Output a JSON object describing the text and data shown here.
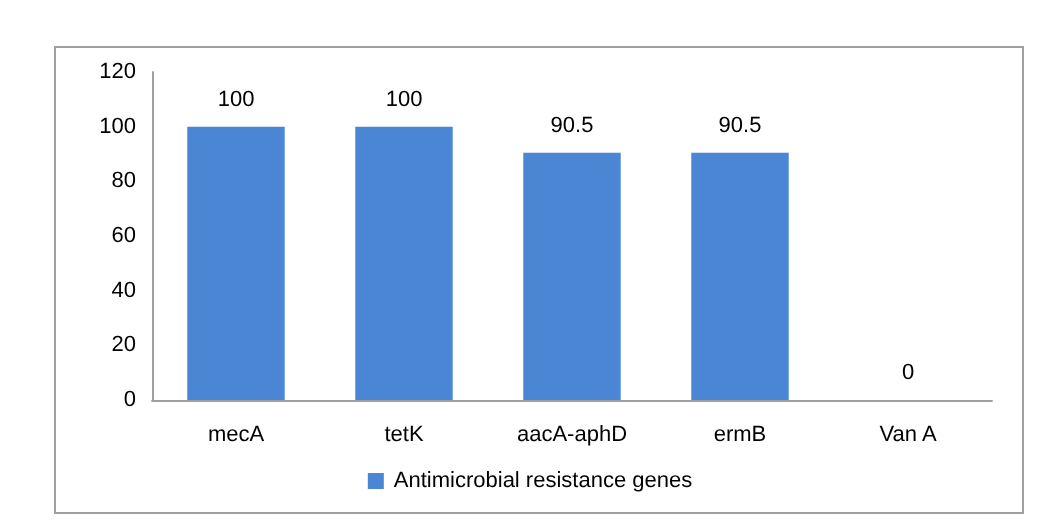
{
  "chart_data": {
    "type": "bar",
    "categories": [
      "mecA",
      "tetK",
      "aacA-aphD",
      "ermB",
      "Van A"
    ],
    "series": [
      {
        "name": "Antimicrobial resistance genes",
        "color": "#4a86d4",
        "values": [
          100,
          100,
          90.5,
          90.5,
          0
        ]
      }
    ],
    "ylim": [
      0,
      120
    ],
    "yticks": [
      0,
      20,
      40,
      60,
      80,
      100,
      120
    ],
    "grid": false,
    "legend": "bottom",
    "data_labels": true
  }
}
